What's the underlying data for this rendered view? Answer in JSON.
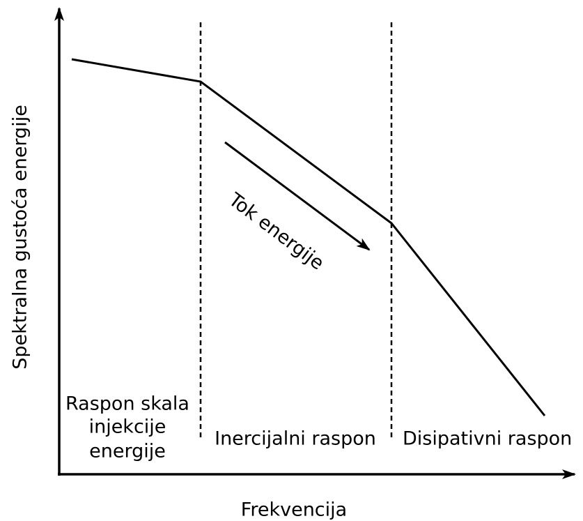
{
  "y_axis_label": "Spektralna gustoća energije",
  "x_axis_label": "Frekvencija",
  "regions": [
    {
      "lines": [
        "Raspon skala",
        "injekcije",
        "energije"
      ]
    },
    {
      "lines": [
        "Inercijalni raspon"
      ]
    },
    {
      "lines": [
        "Disipativni raspon"
      ]
    }
  ],
  "annotation": "Tok energije"
}
